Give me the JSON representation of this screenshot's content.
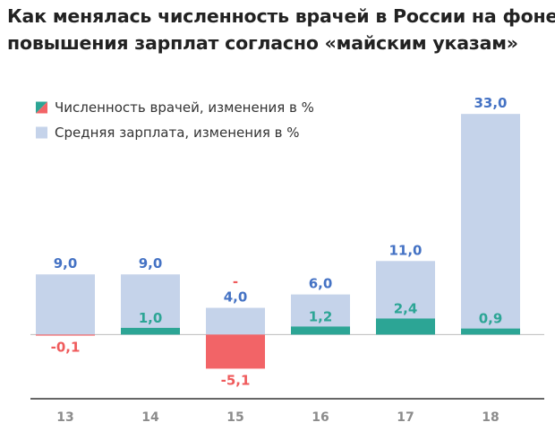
{
  "title_lines": [
    "Как менялась численность врачей в России на фоне",
    "повышения зарплат согласно «майским указам»"
  ],
  "colors": {
    "salary": "#c5d3ea",
    "doctors_positive": "#2ca595",
    "doctors_negative": "#f26467",
    "salary_label": "#4472c4",
    "doctors_positive_label": "#2ca595",
    "doctors_negative_label": "#ef5a5b",
    "axis": "#333333",
    "zero_line": "#bbbbbb"
  },
  "chart_data": {
    "type": "bar",
    "categories": [
      "13",
      "14",
      "15",
      "16",
      "17",
      "18"
    ],
    "series": [
      {
        "name": "Средняя зарплата, изменения в %",
        "values": [
          9.0,
          9.0,
          4.0,
          6.0,
          11.0,
          33.0
        ],
        "labels": [
          "9,0",
          "9,0",
          "4,0",
          "6,0",
          "11,0",
          "33,0"
        ]
      },
      {
        "name": "Численность врачей, изменения в %",
        "values": [
          -0.1,
          1.0,
          -5.1,
          1.2,
          2.4,
          0.9
        ],
        "labels": [
          "-0,1",
          "1,0",
          "-5,1",
          "1,2",
          "2,4",
          "0,9"
        ]
      }
    ],
    "annotations": [
      {
        "category": "15",
        "text": "-"
      }
    ],
    "ylim": [
      -9.6,
      35.3
    ],
    "legend_position": "top-left",
    "grid": false
  }
}
